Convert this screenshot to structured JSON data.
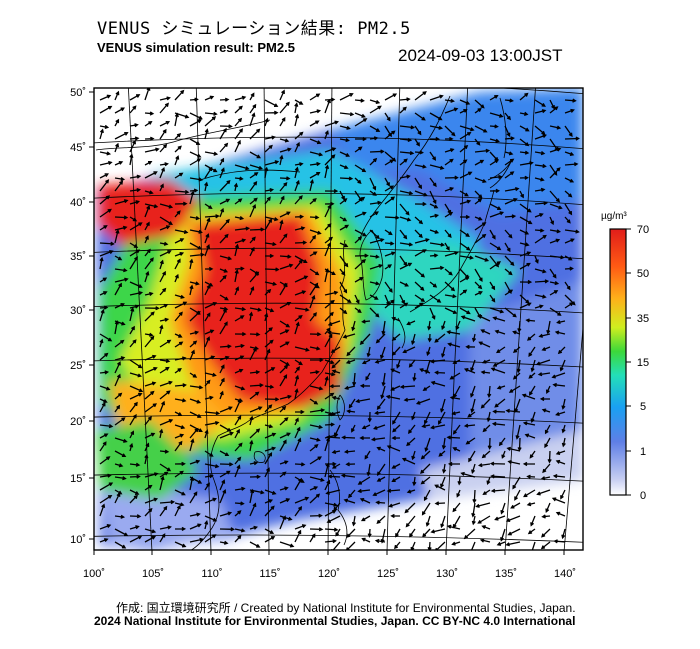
{
  "header": {
    "title_jp": "VENUS シミュレーション結果: PM2.5",
    "title_en": "VENUS simulation result: PM2.5",
    "timestamp": "2024-09-03 13:00JST"
  },
  "map": {
    "lon_labels": [
      "100˚",
      "105˚",
      "110˚",
      "115˚",
      "120˚",
      "125˚",
      "130˚",
      "135˚",
      "140˚"
    ],
    "lat_labels": [
      "50˚",
      "45˚",
      "40˚",
      "35˚",
      "30˚",
      "25˚",
      "20˚",
      "15˚",
      "10˚"
    ],
    "frame_color": "#000000",
    "coastline_color": "#000000",
    "wind_arrow_color": "#000000"
  },
  "colorbar": {
    "unit": "µg/m³",
    "ticks": [
      "70",
      "50",
      "35",
      "15",
      "5",
      "1",
      "0"
    ],
    "colors": [
      "#ffffff",
      "#b9c2f0",
      "#5a7de8",
      "#1f9cf2",
      "#28e6a8",
      "#3fdc33",
      "#d6ee1e",
      "#ffb21a",
      "#ff5a12",
      "#e6201a"
    ]
  },
  "footer": {
    "credit": "作成: 国立環境研究所 / Created by National Institute for Environmental Studies, Japan.",
    "license": "2024 National Institute for Environmental Studies, Japan. CC BY-NC 4.0 International"
  }
}
